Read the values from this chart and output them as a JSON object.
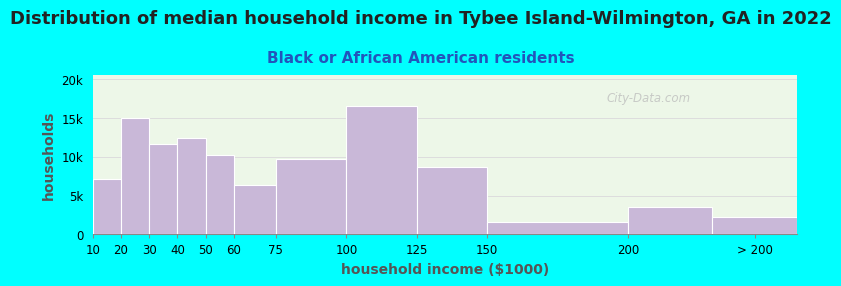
{
  "title": "Distribution of median household income in Tybee Island-Wilmington, GA in 2022",
  "subtitle": "Black or African American residents",
  "xlabel": "household income ($1000)",
  "ylabel": "households",
  "bar_lefts": [
    10,
    20,
    30,
    40,
    50,
    60,
    75,
    100,
    125,
    150,
    200,
    230
  ],
  "bar_widths": [
    10,
    10,
    10,
    10,
    10,
    15,
    25,
    25,
    25,
    50,
    30,
    30
  ],
  "bar_values": [
    7200,
    15000,
    11700,
    12400,
    10200,
    6400,
    9700,
    16600,
    8700,
    1600,
    3500,
    2200
  ],
  "xtick_positions": [
    10,
    20,
    30,
    40,
    50,
    60,
    75,
    100,
    125,
    150,
    200,
    245
  ],
  "xtick_labels": [
    "10",
    "20",
    "30",
    "40",
    "50",
    "60",
    "75",
    "100",
    "125",
    "150",
    "200",
    "> 200"
  ],
  "bar_color": "#c9b8d8",
  "bar_edgecolor": "#ffffff",
  "bg_color": "#00ffff",
  "plot_bg_color": "#edf7e8",
  "ytick_labels": [
    "0",
    "5k",
    "10k",
    "15k",
    "20k"
  ],
  "ytick_values": [
    0,
    5000,
    10000,
    15000,
    20000
  ],
  "ylim": [
    0,
    20500
  ],
  "xlim": [
    10,
    260
  ],
  "title_fontsize": 13,
  "subtitle_fontsize": 11,
  "axis_label_fontsize": 10,
  "watermark": "City-Data.com"
}
